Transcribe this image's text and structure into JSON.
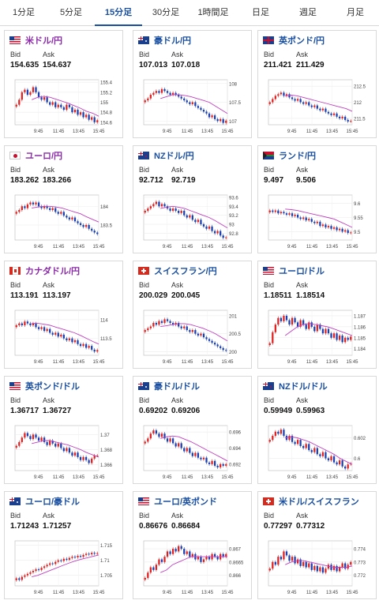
{
  "tabs": [
    {
      "label": "1分足",
      "active": false
    },
    {
      "label": "5分足",
      "active": false
    },
    {
      "label": "15分足",
      "active": true
    },
    {
      "label": "30分足",
      "active": false
    },
    {
      "label": "1時間足",
      "active": false
    },
    {
      "label": "日足",
      "active": false
    },
    {
      "label": "週足",
      "active": false
    },
    {
      "label": "月足",
      "active": false
    }
  ],
  "labels": {
    "bid": "Bid",
    "ask": "Ask"
  },
  "colors": {
    "up": "#e02020",
    "down": "#1a3fb0",
    "ma": "#c040c0",
    "ma2": "#2aa0c8"
  },
  "pairs": [
    {
      "name": "米ドル/円",
      "highlight": true,
      "flag": "us",
      "bid": "154.635",
      "ask": "154.637"
    },
    {
      "name": "豪ドル/円",
      "highlight": false,
      "flag": "au",
      "bid": "107.013",
      "ask": "107.018"
    },
    {
      "name": "英ポンド/円",
      "highlight": false,
      "flag": "gb",
      "bid": "211.421",
      "ask": "211.429"
    },
    {
      "name": "ユーロ/円",
      "highlight": true,
      "flag": "jp",
      "bid": "183.262",
      "ask": "183.266"
    },
    {
      "name": "NZドル/円",
      "highlight": false,
      "flag": "nz",
      "bid": "92.712",
      "ask": "92.719"
    },
    {
      "name": "ランド/円",
      "highlight": false,
      "flag": "za",
      "bid": "9.497",
      "ask": "9.506"
    },
    {
      "name": "カナダドル/円",
      "highlight": true,
      "flag": "ca",
      "bid": "113.191",
      "ask": "113.197"
    },
    {
      "name": "スイスフラン/円",
      "highlight": false,
      "flag": "ch",
      "bid": "200.029",
      "ask": "200.045"
    },
    {
      "name": "ユーロ/ドル",
      "highlight": false,
      "flag": "us",
      "bid": "1.18511",
      "ask": "1.18514"
    },
    {
      "name": "英ポンド/ドル",
      "highlight": false,
      "flag": "us",
      "bid": "1.36717",
      "ask": "1.36727"
    },
    {
      "name": "豪ドル/ドル",
      "highlight": false,
      "flag": "au",
      "bid": "0.69202",
      "ask": "0.69206"
    },
    {
      "name": "NZドル/ドル",
      "highlight": false,
      "flag": "nz",
      "bid": "0.59949",
      "ask": "0.59963"
    },
    {
      "name": "ユーロ/豪ドル",
      "highlight": false,
      "flag": "au",
      "bid": "1.71243",
      "ask": "1.71257"
    },
    {
      "name": "ユーロ/英ポンド",
      "highlight": false,
      "flag": "us",
      "bid": "0.86676",
      "ask": "0.86684"
    },
    {
      "name": "米ドル/スイスフラン",
      "highlight": false,
      "flag": "ch",
      "bid": "0.77297",
      "ask": "0.77312"
    }
  ],
  "chart_data": [
    {
      "type": "candlestick",
      "x_ticks": [
        "9:45",
        "11:45",
        "13:45",
        "15:45"
      ],
      "y_ticks": [
        "155.4",
        "155.2",
        "155",
        "154.8",
        "154.6"
      ],
      "ylim": [
        154.55,
        155.45
      ],
      "close": [
        154.95,
        155.05,
        155.2,
        155.25,
        155.15,
        155.2,
        155.3,
        155.2,
        155.1,
        155.05,
        155.1,
        155.0,
        154.95,
        155.0,
        154.9,
        154.95,
        154.9,
        154.85,
        154.95,
        154.9,
        154.8,
        154.85,
        154.75,
        154.8,
        154.7,
        154.75,
        154.65,
        154.7,
        154.6,
        154.64
      ],
      "ma": [
        155.05,
        155.1,
        155.12,
        155.1,
        155.06,
        155.02,
        154.98,
        154.93,
        154.88,
        154.82,
        154.78,
        154.72
      ]
    },
    {
      "type": "candlestick",
      "x_ticks": [
        "9:45",
        "11:45",
        "13:45",
        "15:45"
      ],
      "y_ticks": [
        "108",
        "107.5",
        "107"
      ],
      "ylim": [
        106.9,
        108.1
      ],
      "close": [
        107.55,
        107.6,
        107.7,
        107.75,
        107.8,
        107.75,
        107.85,
        107.8,
        107.75,
        107.7,
        107.75,
        107.7,
        107.65,
        107.6,
        107.55,
        107.5,
        107.45,
        107.5,
        107.4,
        107.35,
        107.3,
        107.25,
        107.2,
        107.1,
        107.15,
        107.05,
        107.0,
        107.05,
        106.95,
        107.01
      ],
      "ma": [
        107.6,
        107.65,
        107.7,
        107.7,
        107.68,
        107.65,
        107.6,
        107.55,
        107.5,
        107.4,
        107.3,
        107.2
      ]
    },
    {
      "type": "candlestick",
      "x_ticks": [
        "9:45",
        "11:45",
        "13:45",
        "15:45"
      ],
      "y_ticks": [
        "212.5",
        "212",
        "211.5"
      ],
      "ylim": [
        211.3,
        212.7
      ],
      "close": [
        212.0,
        212.1,
        212.2,
        212.25,
        212.3,
        212.2,
        212.25,
        212.15,
        212.1,
        212.05,
        212.1,
        212.0,
        211.95,
        212.0,
        211.9,
        211.85,
        211.9,
        211.8,
        211.75,
        211.8,
        211.7,
        211.65,
        211.6,
        211.65,
        211.55,
        211.5,
        211.55,
        211.45,
        211.4,
        211.42
      ],
      "ma": [
        212.2,
        212.22,
        212.2,
        212.15,
        212.1,
        212.05,
        212.0,
        211.95,
        211.9,
        211.85,
        211.8,
        211.72
      ]
    },
    {
      "type": "candlestick",
      "x_ticks": [
        "9:45",
        "11:45",
        "13:45",
        "15:45"
      ],
      "y_ticks": [
        "184",
        "183.5"
      ],
      "ylim": [
        183.1,
        184.3
      ],
      "close": [
        183.85,
        183.9,
        184.0,
        183.95,
        184.05,
        184.1,
        184.05,
        184.1,
        184.0,
        183.95,
        184.0,
        183.95,
        183.9,
        183.95,
        183.85,
        183.8,
        183.85,
        183.75,
        183.7,
        183.65,
        183.7,
        183.6,
        183.55,
        183.5,
        183.45,
        183.5,
        183.4,
        183.35,
        183.3,
        183.26
      ],
      "ma": [
        183.95,
        183.98,
        184.0,
        184.0,
        183.98,
        183.95,
        183.9,
        183.85,
        183.8,
        183.72,
        183.65,
        183.58
      ]
    },
    {
      "type": "candlestick",
      "x_ticks": [
        "9:45",
        "11:45",
        "13:45",
        "15:45"
      ],
      "y_ticks": [
        "93.6",
        "93.4",
        "93.2",
        "93",
        "92.8"
      ],
      "ylim": [
        92.65,
        93.65
      ],
      "close": [
        93.3,
        93.35,
        93.4,
        93.45,
        93.5,
        93.4,
        93.45,
        93.4,
        93.35,
        93.3,
        93.35,
        93.3,
        93.25,
        93.3,
        93.2,
        93.15,
        93.2,
        93.1,
        93.05,
        93.1,
        93.0,
        92.95,
        92.9,
        92.95,
        92.85,
        92.8,
        92.85,
        92.75,
        92.7,
        92.71
      ],
      "ma": [
        93.35,
        93.38,
        93.4,
        93.38,
        93.35,
        93.3,
        93.25,
        93.2,
        93.15,
        93.08,
        93.0,
        92.92
      ]
    },
    {
      "type": "candlestick",
      "x_ticks": [
        "9:45",
        "11:45",
        "13:45",
        "15:45"
      ],
      "y_ticks": [
        "9.6",
        "9.55",
        "9.5"
      ],
      "ylim": [
        9.47,
        9.63
      ],
      "close": [
        9.575,
        9.57,
        9.575,
        9.565,
        9.57,
        9.565,
        9.56,
        9.565,
        9.555,
        9.56,
        9.55,
        9.545,
        9.55,
        9.54,
        9.545,
        9.535,
        9.53,
        9.535,
        9.52,
        9.525,
        9.515,
        9.52,
        9.51,
        9.515,
        9.505,
        9.51,
        9.5,
        9.505,
        9.495,
        9.497
      ],
      "ma": [
        9.58,
        9.578,
        9.575,
        9.57,
        9.565,
        9.56,
        9.555,
        9.55,
        9.545,
        9.535,
        9.525,
        9.515
      ]
    },
    {
      "type": "candlestick",
      "x_ticks": [
        "9:45",
        "11:45",
        "13:45",
        "15:45"
      ],
      "y_ticks": [
        "114",
        "113.5"
      ],
      "ylim": [
        113.05,
        114.25
      ],
      "close": [
        113.85,
        113.9,
        113.85,
        113.95,
        113.9,
        113.85,
        113.9,
        113.8,
        113.75,
        113.8,
        113.7,
        113.75,
        113.65,
        113.6,
        113.65,
        113.55,
        113.6,
        113.5,
        113.45,
        113.5,
        113.4,
        113.45,
        113.35,
        113.3,
        113.35,
        113.25,
        113.3,
        113.2,
        113.15,
        113.19
      ],
      "ma": [
        113.9,
        113.9,
        113.88,
        113.85,
        113.8,
        113.75,
        113.7,
        113.65,
        113.58,
        113.5,
        113.42,
        113.35
      ]
    },
    {
      "type": "candlestick",
      "x_ticks": [
        "9:45",
        "11:45",
        "13:45",
        "15:45"
      ],
      "y_ticks": [
        "201",
        "200.5",
        "200"
      ],
      "ylim": [
        199.9,
        201.15
      ],
      "close": [
        200.6,
        200.65,
        200.7,
        200.8,
        200.75,
        200.85,
        200.8,
        200.9,
        200.85,
        200.8,
        200.75,
        200.8,
        200.7,
        200.65,
        200.7,
        200.6,
        200.55,
        200.6,
        200.5,
        200.45,
        200.5,
        200.4,
        200.35,
        200.3,
        200.25,
        200.2,
        200.15,
        200.1,
        200.05,
        200.03
      ],
      "ma": [
        200.7,
        200.72,
        200.75,
        200.78,
        200.78,
        200.75,
        200.7,
        200.65,
        200.58,
        200.5,
        200.4,
        200.3
      ]
    },
    {
      "type": "candlestick",
      "x_ticks": [
        "9:45",
        "11:45",
        "13:45",
        "15:45"
      ],
      "y_ticks": [
        "1.187",
        "1.186",
        "1.185",
        "1.184"
      ],
      "ylim": [
        1.1834,
        1.1875
      ],
      "close": [
        1.1845,
        1.1855,
        1.1862,
        1.1868,
        1.1865,
        1.187,
        1.1866,
        1.1862,
        1.1868,
        1.1864,
        1.186,
        1.1866,
        1.1862,
        1.1858,
        1.1864,
        1.186,
        1.1856,
        1.1862,
        1.1858,
        1.1854,
        1.1858,
        1.1854,
        1.185,
        1.1854,
        1.1848,
        1.1852,
        1.1846,
        1.185,
        1.1848,
        1.1851
      ],
      "ma": [
        1.1852,
        1.1856,
        1.186,
        1.1862,
        1.1863,
        1.1862,
        1.1861,
        1.186,
        1.1858,
        1.1856,
        1.1854,
        1.1852
      ]
    },
    {
      "type": "candlestick",
      "x_ticks": [
        "9:45",
        "11:45",
        "13:45",
        "15:45"
      ],
      "y_ticks": [
        "1.37",
        "1.368",
        "1.366"
      ],
      "ylim": [
        1.3652,
        1.3712
      ],
      "close": [
        1.3685,
        1.369,
        1.3696,
        1.3702,
        1.3698,
        1.3694,
        1.37,
        1.3696,
        1.3692,
        1.3696,
        1.369,
        1.3686,
        1.3692,
        1.3688,
        1.3684,
        1.3688,
        1.3682,
        1.3678,
        1.3682,
        1.3676,
        1.3672,
        1.3676,
        1.367,
        1.3666,
        1.367,
        1.3666,
        1.3662,
        1.3668,
        1.3672,
        1.3672
      ],
      "ma": [
        1.3688,
        1.369,
        1.3692,
        1.3692,
        1.369,
        1.3688,
        1.3686,
        1.3683,
        1.368,
        1.3676,
        1.3673,
        1.367
      ]
    },
    {
      "type": "candlestick",
      "x_ticks": [
        "9:45",
        "11:45",
        "13:45",
        "15:45"
      ],
      "y_ticks": [
        "0.696",
        "0.694",
        "0.692"
      ],
      "ylim": [
        0.6912,
        0.6968
      ],
      "close": [
        0.6948,
        0.6952,
        0.6958,
        0.6962,
        0.6958,
        0.6954,
        0.6958,
        0.6952,
        0.6948,
        0.6952,
        0.6946,
        0.6942,
        0.6946,
        0.694,
        0.6936,
        0.694,
        0.6934,
        0.693,
        0.6934,
        0.6928,
        0.6926,
        0.6928,
        0.6922,
        0.692,
        0.6924,
        0.6918,
        0.6916,
        0.692,
        0.6918,
        0.692
      ],
      "ma": [
        0.6952,
        0.6954,
        0.6955,
        0.6954,
        0.6951,
        0.6948,
        0.6944,
        0.694,
        0.6936,
        0.6932,
        0.6928,
        0.6924
      ]
    },
    {
      "type": "candlestick",
      "x_ticks": [
        "9:45",
        "11:45",
        "13:45",
        "15:45"
      ],
      "y_ticks": [
        "0.602",
        "0.6"
      ],
      "ylim": [
        0.5988,
        0.6032
      ],
      "close": [
        0.6018,
        0.6022,
        0.6026,
        0.6024,
        0.6028,
        0.6022,
        0.6018,
        0.6022,
        0.6016,
        0.6014,
        0.6018,
        0.6012,
        0.601,
        0.6014,
        0.6008,
        0.6006,
        0.601,
        0.6004,
        0.6002,
        0.6006,
        0.6,
        0.5998,
        0.6002,
        0.5996,
        0.5994,
        0.5998,
        0.5992,
        0.599,
        0.5994,
        0.5995
      ],
      "ma": [
        0.602,
        0.6021,
        0.602,
        0.6018,
        0.6016,
        0.6013,
        0.601,
        0.6007,
        0.6004,
        0.6,
        0.5997,
        0.5994
      ]
    },
    {
      "type": "candlestick",
      "x_ticks": [
        "9:45",
        "11:45",
        "13:45",
        "15:45"
      ],
      "y_ticks": [
        "1.715",
        "1.71",
        "1.705"
      ],
      "ylim": [
        1.7015,
        1.7165
      ],
      "close": [
        1.704,
        1.7035,
        1.7045,
        1.705,
        1.7055,
        1.706,
        1.7065,
        1.707,
        1.7068,
        1.7075,
        1.708,
        1.7085,
        1.709,
        1.7088,
        1.7095,
        1.71,
        1.7098,
        1.7105,
        1.7102,
        1.7108,
        1.7112,
        1.711,
        1.7115,
        1.7112,
        1.7118,
        1.7122,
        1.712,
        1.7125,
        1.7122,
        1.7124
      ],
      "ma": [
        1.7045,
        1.705,
        1.7058,
        1.7066,
        1.7074,
        1.7082,
        1.709,
        1.7097,
        1.7103,
        1.7108,
        1.7113,
        1.7118
      ]
    },
    {
      "type": "candlestick",
      "x_ticks": [
        "9:45",
        "11:45",
        "13:45",
        "15:45"
      ],
      "y_ticks": [
        "0.867",
        "0.8665",
        "0.866"
      ],
      "ylim": [
        0.8656,
        0.8673
      ],
      "close": [
        0.8659,
        0.8661,
        0.8663,
        0.8662,
        0.8664,
        0.8666,
        0.8665,
        0.8667,
        0.8669,
        0.8668,
        0.867,
        0.8669,
        0.8671,
        0.867,
        0.8668,
        0.8669,
        0.8667,
        0.8668,
        0.8666,
        0.8667,
        0.8665,
        0.8666,
        0.8667,
        0.8666,
        0.8668,
        0.8667,
        0.8666,
        0.8668,
        0.8667,
        0.8668
      ],
      "ma": [
        0.8661,
        0.8662,
        0.8664,
        0.8665,
        0.8666,
        0.8667,
        0.8667,
        0.8667,
        0.8667,
        0.8667,
        0.8667,
        0.8667
      ]
    },
    {
      "type": "candlestick",
      "x_ticks": [
        "9:45",
        "11:45",
        "13:45",
        "15:45"
      ],
      "y_ticks": [
        "0.774",
        "0.773",
        "0.772"
      ],
      "ylim": [
        0.7712,
        0.7746
      ],
      "close": [
        0.7725,
        0.773,
        0.7728,
        0.7734,
        0.7732,
        0.7738,
        0.7735,
        0.7731,
        0.7734,
        0.7729,
        0.7732,
        0.7727,
        0.773,
        0.7726,
        0.7729,
        0.7724,
        0.7727,
        0.7723,
        0.7726,
        0.7722,
        0.7725,
        0.7728,
        0.7724,
        0.7727,
        0.7723,
        0.7726,
        0.7729,
        0.7725,
        0.7728,
        0.773
      ],
      "ma": [
        0.7728,
        0.773,
        0.7731,
        0.7731,
        0.773,
        0.7729,
        0.7728,
        0.7727,
        0.7726,
        0.7726,
        0.7726,
        0.7727
      ]
    }
  ]
}
